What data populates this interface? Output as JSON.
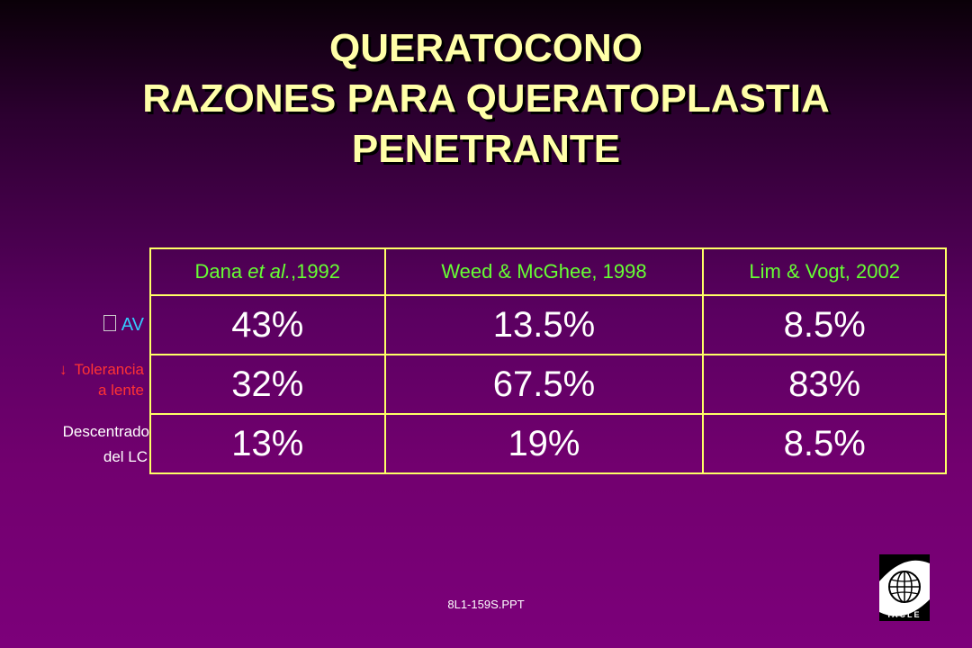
{
  "title": {
    "line1": "QUERATOCONO",
    "line2": "RAZONES PARA QUERATOPLASTIA",
    "line3": "PENETRANTE"
  },
  "table": {
    "headers": [
      {
        "pre": "Dana ",
        "italic": "et al.",
        "post": ",1992"
      },
      {
        "pre": "Weed & McGhee, 1998",
        "italic": "",
        "post": ""
      },
      {
        "pre": "Lim & Vogt, 2002",
        "italic": "",
        "post": ""
      }
    ],
    "rows": [
      {
        "label_icon": "",
        "label_line1": "AV",
        "label_line2": "",
        "label_color": "#33ccff",
        "values": [
          "43%",
          "13.5%",
          "8.5%"
        ]
      },
      {
        "label_icon": "↓",
        "label_line1": "Tolerancia",
        "label_line2": "a lente",
        "label_color": "#ff3333",
        "values": [
          "32%",
          "67.5%",
          "83%"
        ]
      },
      {
        "label_icon": "",
        "label_line1": "Descentrado",
        "label_line2": "del LC",
        "label_color": "#ffffff",
        "values": [
          "13%",
          "19%",
          "8.5%"
        ]
      }
    ]
  },
  "footer": "8L1-159S.PPT",
  "logo": {
    "text": "IACLE"
  },
  "colors": {
    "title": "#ffffa8",
    "header_text": "#66ff33",
    "border": "#ffff66",
    "background": "#7c007a"
  }
}
